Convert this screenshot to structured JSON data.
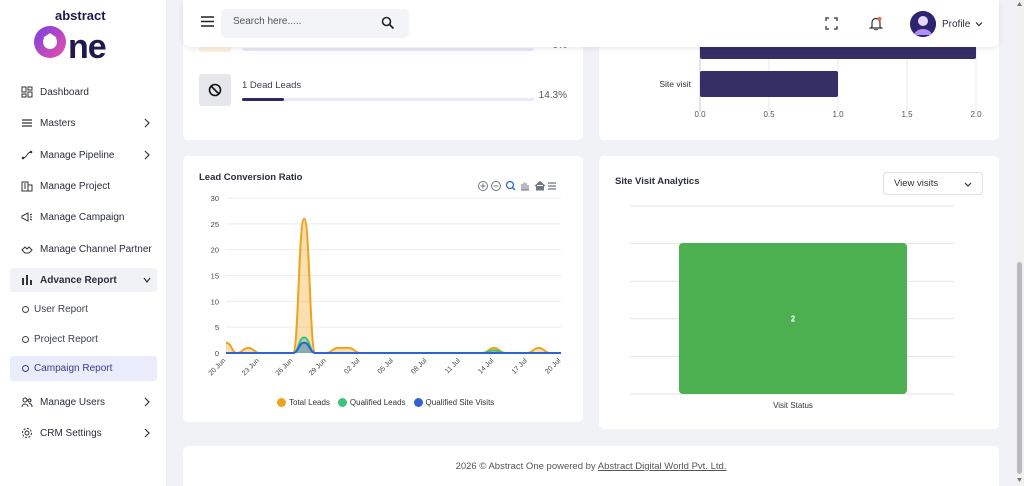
{
  "brand": {
    "logo_text_top": "abstract",
    "logo_text_main": "one"
  },
  "sidebar": {
    "items": [
      {
        "label": "Dashboard",
        "icon": "dashboard-icon",
        "has_chevron": false
      },
      {
        "label": "Masters",
        "icon": "list-icon",
        "has_chevron": true
      },
      {
        "label": "Manage Pipeline",
        "icon": "pipeline-icon",
        "has_chevron": true
      },
      {
        "label": "Manage Project",
        "icon": "building-icon",
        "has_chevron": false
      },
      {
        "label": "Manage Campaign",
        "icon": "megaphone-icon",
        "has_chevron": false
      },
      {
        "label": "Manage Channel Partner",
        "icon": "partner-icon",
        "has_chevron": false
      },
      {
        "label": "Advance Report",
        "icon": "bar-chart-icon",
        "has_chevron": true,
        "expanded": true
      },
      {
        "label": "Manage Users",
        "icon": "users-icon",
        "has_chevron": true
      },
      {
        "label": "CRM Settings",
        "icon": "gear-icon",
        "has_chevron": true
      }
    ],
    "sub_items": [
      {
        "label": "User Report",
        "active": false
      },
      {
        "label": "Project Report",
        "active": false
      },
      {
        "label": "Campaign Report",
        "active": true
      }
    ]
  },
  "header": {
    "search_placeholder": "Search here.....",
    "profile_label": "Profile"
  },
  "leads_card": {
    "partial_pct": "0%",
    "dead_leads_label": "1 Dead Leads",
    "dead_leads_pct": "14.3%",
    "dead_leads_fraction": 0.143
  },
  "site_visit_bar_card": {
    "category": "Site visit",
    "x_ticks": [
      "0.0",
      "0.5",
      "1.0",
      "1.5",
      "2.0"
    ]
  },
  "lead_conversion": {
    "title": "Lead Conversion Ratio",
    "legend": [
      "Total Leads",
      "Qualified Leads",
      "Qualified Site Visits"
    ]
  },
  "site_visit_analytics": {
    "title": "Site Visit Analytics",
    "select_value": "View visits",
    "x_label": "Visit Status",
    "bar_value_label": "2"
  },
  "colors": {
    "accent": "#3d3a8f",
    "navy_bar": "#352f66",
    "total_leads": "#f0a21e",
    "qualified_leads": "#3cc47c",
    "qualified_site_visits": "#2e63d6",
    "site_visit_green": "#4caf50"
  },
  "chart_data": [
    {
      "type": "bar",
      "orientation": "horizontal",
      "categories": [
        "",
        "Site visit"
      ],
      "values": [
        2,
        1
      ],
      "xlim": [
        0,
        2
      ],
      "x_ticks": [
        "0.0",
        "0.5",
        "1.0",
        "1.5",
        "2.0"
      ],
      "grid": true
    },
    {
      "type": "area",
      "title": "Lead Conversion Ratio",
      "x": [
        "20 Jun",
        "21 Jun",
        "22 Jun",
        "23 Jun",
        "24 Jun",
        "25 Jun",
        "26 Jun",
        "27 Jun",
        "28 Jun",
        "29 Jun",
        "30 Jun",
        "01 Jul",
        "02 Jul",
        "03 Jul",
        "04 Jul",
        "05 Jul",
        "06 Jul",
        "07 Jul",
        "08 Jul",
        "09 Jul",
        "10 Jul",
        "11 Jul",
        "12 Jul",
        "13 Jul",
        "14 Jul",
        "15 Jul",
        "16 Jul",
        "17 Jul",
        "18 Jul",
        "19 Jul",
        "20 Jul"
      ],
      "x_ticks": [
        "20 Jun",
        "23 Jun",
        "26 Jun",
        "29 Jun",
        "02 Jul",
        "05 Jul",
        "08 Jul",
        "11 Jul",
        "14 Jul",
        "17 Jul",
        "20 Jul"
      ],
      "y_ticks": [
        0,
        5,
        10,
        15,
        20,
        25,
        30
      ],
      "ylim": [
        0,
        30
      ],
      "series": [
        {
          "name": "Total Leads",
          "values": [
            2,
            0,
            1,
            0,
            0,
            0,
            0,
            26,
            0,
            0,
            1,
            1,
            0,
            0,
            0,
            0,
            0,
            0,
            0,
            0,
            0,
            0,
            0,
            0,
            1,
            0,
            0,
            0,
            1,
            0,
            0
          ]
        },
        {
          "name": "Qualified Leads",
          "values": [
            0,
            0,
            0,
            0,
            0,
            0,
            0,
            3,
            0,
            0,
            0,
            0,
            0,
            0,
            0,
            0,
            0,
            0,
            0,
            0,
            0,
            0,
            0,
            0,
            0.5,
            0,
            0,
            0,
            0,
            0,
            0
          ]
        },
        {
          "name": "Qualified Site Visits",
          "values": [
            0,
            0,
            0,
            0,
            0,
            0,
            0,
            2,
            0,
            0,
            0,
            0,
            0,
            0,
            0,
            0,
            0,
            0,
            0,
            0,
            0,
            0,
            0,
            0,
            0,
            0,
            0,
            0,
            0,
            0,
            0
          ]
        }
      ],
      "legend_position": "bottom"
    },
    {
      "type": "bar",
      "title": "Site Visit Analytics",
      "categories": [
        "Visit Status"
      ],
      "values": [
        2
      ],
      "xlabel": "Visit Status",
      "grid": true
    }
  ],
  "footer": {
    "prefix": "2026 © Abstract One powered by",
    "link": "Abstract Digital World Pvt. Ltd."
  }
}
